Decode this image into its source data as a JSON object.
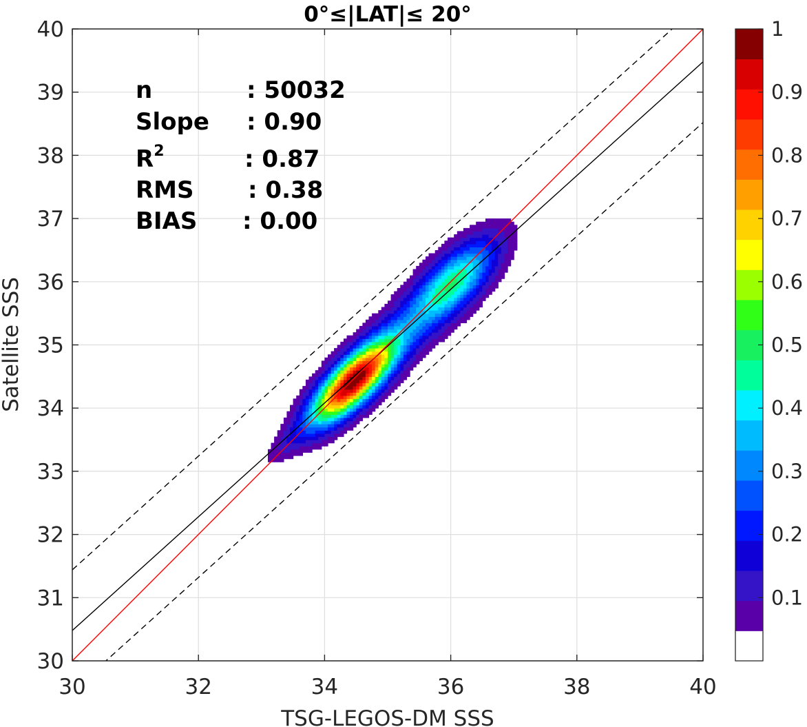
{
  "chart_data": {
    "type": "heatmap",
    "title": "0°≤|LAT|≤ 20°",
    "xlabel": "TSG-LEGOS-DM SSS",
    "ylabel": "Satellite SSS",
    "xlim": [
      30,
      40
    ],
    "ylim": [
      30,
      40
    ],
    "x_ticks": [
      "30",
      "32",
      "34",
      "36",
      "38",
      "40"
    ],
    "y_ticks": [
      "30",
      "31",
      "32",
      "33",
      "34",
      "35",
      "36",
      "37",
      "38",
      "39",
      "40"
    ],
    "grid": true,
    "stats": [
      {
        "name": "n",
        "value": ": 50032"
      },
      {
        "name": "Slope",
        "value": ": 0.90"
      },
      {
        "name": "R2",
        "value": ": 0.87"
      },
      {
        "name": "RMS",
        "value": ": 0.38"
      },
      {
        "name": "BIAS",
        "value": ": 0.00"
      }
    ],
    "lines": {
      "one_to_one": {
        "x": [
          30,
          40
        ],
        "y": [
          30,
          40
        ],
        "color": "#ff0000"
      },
      "regression": {
        "x": [
          30,
          40
        ],
        "y": [
          30.48,
          39.48
        ],
        "color": "#000000"
      },
      "upper_dashed": {
        "x": [
          30,
          40
        ],
        "y": [
          31.44,
          40.44
        ],
        "color": "#000000"
      },
      "lower_dashed": {
        "x": [
          30,
          40
        ],
        "y": [
          29.52,
          38.52
        ],
        "color": "#000000"
      }
    },
    "density_peaks": [
      {
        "label": "main",
        "x": 34.45,
        "y": 34.42,
        "level": 1.0
      },
      {
        "label": "secondary",
        "x": 36.1,
        "y": 36.05,
        "level": 0.45
      }
    ],
    "colorbar": {
      "ticks": [
        "0.1",
        "0.2",
        "0.3",
        "0.4",
        "0.5",
        "0.6",
        "0.7",
        "0.8",
        "0.9",
        "1"
      ],
      "range": [
        0,
        1
      ],
      "levels": [
        0,
        0.05,
        0.1,
        0.15,
        0.2,
        0.25,
        0.3,
        0.35,
        0.4,
        0.45,
        0.5,
        0.55,
        0.6,
        0.65,
        0.7,
        0.75,
        0.8,
        0.85,
        0.9,
        0.95,
        1.0
      ],
      "colors": [
        "#ffffff",
        "#5a00a8",
        "#3513c7",
        "#1000d8",
        "#0018ff",
        "#0052ff",
        "#0088ff",
        "#00bcff",
        "#00f0ff",
        "#00ff9a",
        "#18f060",
        "#30ff18",
        "#9cff00",
        "#ffff00",
        "#ffd200",
        "#ffa000",
        "#ff6e00",
        "#ff3c00",
        "#ff1000",
        "#d80000",
        "#850000"
      ]
    }
  }
}
